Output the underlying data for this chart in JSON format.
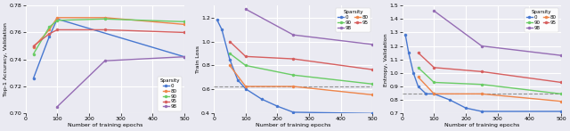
{
  "fig_width": 6.4,
  "fig_height": 1.47,
  "dpi": 100,
  "bg_color": "#eaeaf2",
  "plot1": {
    "xlabel": "Number of training epochs",
    "ylabel": "Top-1 Accuracy, Validation",
    "ylim": [
      0.7,
      0.78
    ],
    "xlim": [
      0,
      500
    ],
    "yticks": [
      0.7,
      0.72,
      0.74,
      0.76,
      0.78
    ],
    "xticks": [
      0,
      100,
      200,
      300,
      400,
      500
    ],
    "series": [
      {
        "key": "0",
        "color": "#4878d0",
        "x": [
          25,
          75,
          100,
          500
        ],
        "y": [
          0.726,
          0.757,
          0.77,
          0.742
        ]
      },
      {
        "key": "80",
        "color": "#ee854a",
        "x": [
          25,
          75,
          100,
          250,
          500
        ],
        "y": [
          0.749,
          0.762,
          0.771,
          0.771,
          0.766
        ]
      },
      {
        "key": "90",
        "color": "#6acc65",
        "x": [
          25,
          75,
          100,
          250,
          500
        ],
        "y": [
          0.744,
          0.764,
          0.769,
          0.77,
          0.768
        ]
      },
      {
        "key": "95",
        "color": "#d65f5f",
        "x": [
          25,
          75,
          100,
          250,
          500
        ],
        "y": [
          0.75,
          0.759,
          0.762,
          0.762,
          0.76
        ]
      },
      {
        "key": "98",
        "color": "#956cb4",
        "x": [
          100,
          250,
          500
        ],
        "y": [
          0.705,
          0.739,
          0.742
        ]
      }
    ],
    "legend_loc": "lower right",
    "legend_entries": [
      {
        "label": "0",
        "color": "#4878d0"
      },
      {
        "label": "80",
        "color": "#ee854a"
      },
      {
        "label": "90",
        "color": "#6acc65"
      },
      {
        "label": "95",
        "color": "#d65f5f"
      },
      {
        "label": "98",
        "color": "#956cb4"
      }
    ],
    "legend_ncol": 1
  },
  "plot2": {
    "xlabel": "Number of training epochs",
    "ylabel": "Train Loss",
    "ylim": [
      0.4,
      1.3
    ],
    "xlim": [
      0,
      500
    ],
    "yticks": [
      0.4,
      0.6,
      0.8,
      1.0,
      1.2
    ],
    "xticks": [
      0,
      100,
      200,
      300,
      400,
      500
    ],
    "hline": 0.625,
    "series": [
      {
        "key": "0",
        "color": "#4878d0",
        "x": [
          10,
          25,
          50,
          75,
          100,
          150,
          200,
          250,
          500
        ],
        "y": [
          1.18,
          1.1,
          0.85,
          0.68,
          0.605,
          0.52,
          0.46,
          0.41,
          0.4
        ]
      },
      {
        "key": "80",
        "color": "#ee854a",
        "x": [
          50,
          100,
          250,
          500
        ],
        "y": [
          0.8,
          0.625,
          0.625,
          0.555
        ]
      },
      {
        "key": "90",
        "color": "#6acc65",
        "x": [
          50,
          100,
          250,
          500
        ],
        "y": [
          0.9,
          0.8,
          0.72,
          0.645
        ]
      },
      {
        "key": "95",
        "color": "#d65f5f",
        "x": [
          50,
          100,
          250,
          500
        ],
        "y": [
          1.0,
          0.875,
          0.855,
          0.765
        ]
      },
      {
        "key": "98",
        "color": "#956cb4",
        "x": [
          100,
          250,
          500
        ],
        "y": [
          1.27,
          1.055,
          0.975
        ]
      }
    ],
    "legend_loc": "upper right",
    "legend_entries": [
      {
        "label": "0",
        "color": "#4878d0"
      },
      {
        "label": "90",
        "color": "#6acc65"
      },
      {
        "label": "98",
        "color": "#956cb4"
      },
      {
        "label": "80",
        "color": "#ee854a"
      },
      {
        "label": "95",
        "color": "#d65f5f"
      }
    ],
    "legend_ncol": 2
  },
  "plot3": {
    "xlabel": "Number of training epochs",
    "ylabel": "Entropy, Validation",
    "ylim": [
      0.7,
      1.5
    ],
    "xlim": [
      0,
      500
    ],
    "yticks": [
      0.7,
      0.8,
      0.9,
      1.0,
      1.1,
      1.2,
      1.3,
      1.4,
      1.5
    ],
    "xticks": [
      0,
      100,
      200,
      300,
      400,
      500
    ],
    "hline": 0.845,
    "series": [
      {
        "key": "0",
        "color": "#4878d0",
        "x": [
          10,
          20,
          35,
          50,
          75,
          100,
          150,
          200,
          250,
          500
        ],
        "y": [
          1.28,
          1.15,
          1.0,
          0.9,
          0.845,
          0.845,
          0.8,
          0.74,
          0.715,
          0.715
        ]
      },
      {
        "key": "80",
        "color": "#ee854a",
        "x": [
          50,
          100,
          250,
          500
        ],
        "y": [
          0.97,
          0.845,
          0.845,
          0.79
        ]
      },
      {
        "key": "90",
        "color": "#6acc65",
        "x": [
          50,
          100,
          250,
          500
        ],
        "y": [
          1.04,
          0.93,
          0.915,
          0.845
        ]
      },
      {
        "key": "95",
        "color": "#d65f5f",
        "x": [
          50,
          100,
          250,
          500
        ],
        "y": [
          1.15,
          1.04,
          1.01,
          0.93
        ]
      },
      {
        "key": "98",
        "color": "#956cb4",
        "x": [
          100,
          250,
          500
        ],
        "y": [
          1.46,
          1.2,
          1.13
        ]
      }
    ],
    "legend_loc": "upper right",
    "legend_entries": [
      {
        "label": "0",
        "color": "#4878d0"
      },
      {
        "label": "90",
        "color": "#6acc65"
      },
      {
        "label": "98",
        "color": "#956cb4"
      },
      {
        "label": "80",
        "color": "#ee854a"
      },
      {
        "label": "95",
        "color": "#d65f5f"
      }
    ],
    "legend_ncol": 2
  }
}
